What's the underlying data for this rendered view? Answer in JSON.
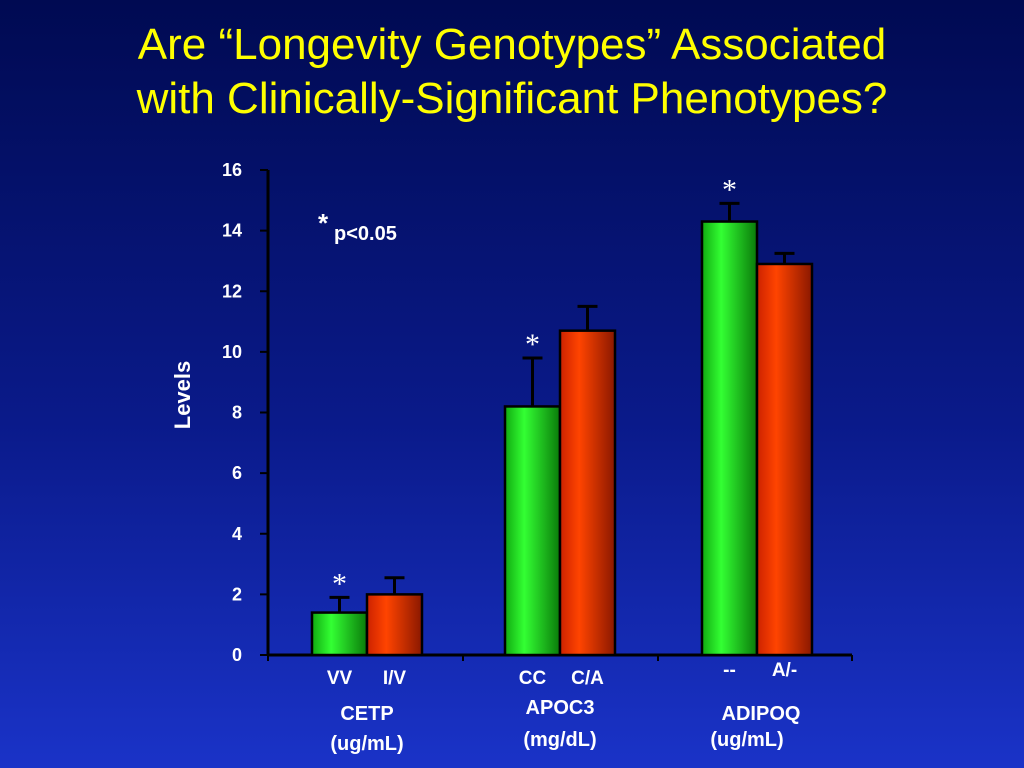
{
  "title": {
    "line1": "Are “Longevity Genotypes” Associated",
    "line2": "with Clinically-Significant Phenotypes?"
  },
  "colors": {
    "background": "#0a1a8a",
    "title": "#ffff00",
    "green_bar": "#22ee22",
    "red_bar": "#ee3300",
    "text": "#ffffff"
  },
  "chart_data": {
    "type": "bar",
    "ylabel": "Levels",
    "ylim": [
      0,
      16
    ],
    "yticks": [
      "0",
      "2",
      "4",
      "6",
      "8",
      "10",
      "12",
      "14",
      "16"
    ],
    "annotation_star": "*",
    "annotation_text": "p<0.05",
    "groups": [
      {
        "name": "CETP",
        "unit": "(ug/mL)",
        "bars": [
          {
            "label": "VV",
            "value": 1.4,
            "error": 0.5,
            "color": "green",
            "significant": true
          },
          {
            "label": "I/V",
            "value": 2.0,
            "error": 0.55,
            "color": "red",
            "significant": false
          }
        ]
      },
      {
        "name": "APOC3",
        "unit": "(mg/dL)",
        "bars": [
          {
            "label": "CC",
            "value": 8.2,
            "error": 1.6,
            "color": "green",
            "significant": true
          },
          {
            "label": "C/A",
            "value": 10.7,
            "error": 0.8,
            "color": "red",
            "significant": false
          }
        ]
      },
      {
        "name": "ADIPOQ",
        "unit": "(ug/mL)",
        "bars": [
          {
            "label": "--",
            "value": 14.3,
            "error": 0.6,
            "color": "green",
            "significant": true
          },
          {
            "label": "A/-",
            "value": 12.9,
            "error": 0.35,
            "color": "red",
            "significant": false
          }
        ]
      }
    ]
  }
}
